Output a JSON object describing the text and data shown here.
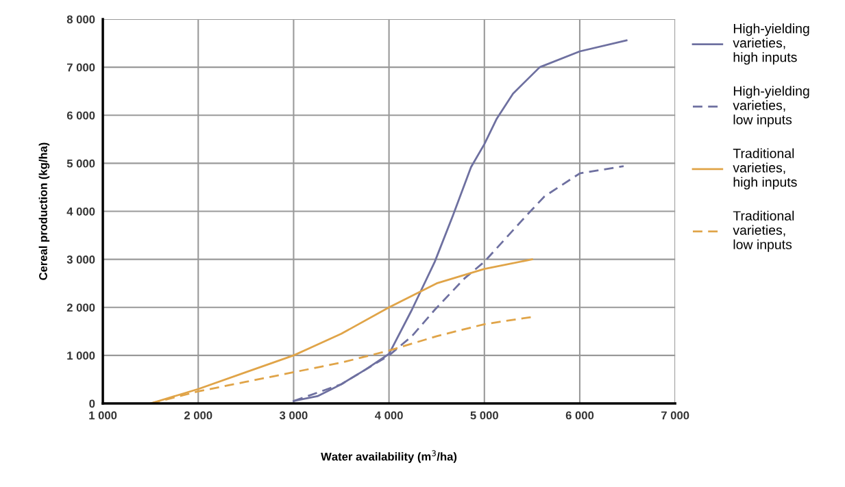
{
  "chart_data": {
    "type": "line",
    "xlabel": "Water availability (m$^{3}$/ha)",
    "ylabel": "Cereal production (kg/ha)",
    "xlim": [
      1000,
      7000
    ],
    "ylim": [
      0,
      8000
    ],
    "xticks": [
      {
        "value": 1000,
        "label": "1 000"
      },
      {
        "value": 2000,
        "label": "2 000"
      },
      {
        "value": 3000,
        "label": "3 000"
      },
      {
        "value": 4000,
        "label": "4 000"
      },
      {
        "value": 5000,
        "label": "5 000"
      },
      {
        "value": 6000,
        "label": "6 000"
      },
      {
        "value": 7000,
        "label": "7 000"
      }
    ],
    "yticks": [
      0,
      {
        "value": 1000,
        "label": "1 000"
      },
      {
        "value": 2000,
        "label": "2 000"
      },
      {
        "value": 3000,
        "label": "3 000"
      },
      {
        "value": 4000,
        "label": "4 000"
      },
      {
        "value": 5000,
        "label": "5 000"
      },
      {
        "value": 6000,
        "label": "6 000"
      },
      {
        "value": 7000,
        "label": "7 000"
      },
      {
        "value": 8000,
        "label": "8 000"
      }
    ],
    "grid": true,
    "legend": "right",
    "marker": "none",
    "series": [
      {
        "name": "High-yielding\nvarieties,\nhigh inputs",
        "color": "#6e70a0",
        "line_style": "solid",
        "x": [
          3000,
          3250,
          3500,
          3750,
          4000,
          4240,
          4480,
          4670,
          4860,
          5000,
          5130,
          5300,
          5580,
          6000,
          6490
        ],
        "values": [
          50,
          150,
          400,
          700,
          1030,
          1950,
          2950,
          3910,
          4920,
          5400,
          5930,
          6450,
          7000,
          7330,
          7560
        ]
      },
      {
        "name": "High-yielding\nvarieties,\nlow inputs",
        "color": "#6e70a0",
        "line_style": "dashed",
        "x": [
          3000,
          3500,
          4000,
          4240,
          4480,
          4790,
          5000,
          5440,
          5630,
          6000,
          6460
        ],
        "values": [
          50,
          400,
          1000,
          1400,
          1950,
          2600,
          2950,
          3910,
          4310,
          4790,
          4940
        ]
      },
      {
        "name": "Traditional\nvarieties,\nhigh inputs",
        "color": "#e0a448",
        "line_style": "solid",
        "x": [
          1500,
          2000,
          2500,
          3000,
          3500,
          4000,
          4500,
          5000,
          5500
        ],
        "values": [
          0,
          300,
          650,
          1000,
          1450,
          2000,
          2500,
          2800,
          3000
        ]
      },
      {
        "name": "Traditional\nvarieties,\nlow inputs",
        "color": "#e0a448",
        "line_style": "dashed",
        "x": [
          1500,
          2000,
          2500,
          3000,
          3500,
          4000,
          4500,
          5000,
          5500
        ],
        "values": [
          0,
          250,
          450,
          650,
          850,
          1100,
          1400,
          1650,
          1800
        ]
      }
    ]
  }
}
